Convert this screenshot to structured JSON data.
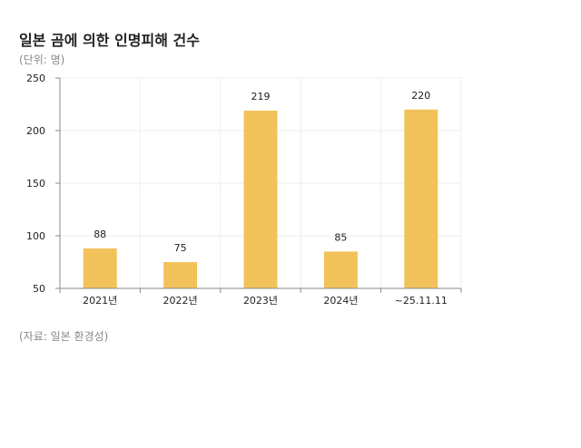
{
  "title": "일본 곰에 의한 인명피해 건수",
  "unit_note": "(단위: 명)",
  "source_note": "(자료: 일본 환경성)",
  "colors": {
    "bar": "#F2C25A",
    "grid": "#eeeeee",
    "axis": "#888888"
  },
  "chart_data": {
    "type": "bar",
    "title": "일본 곰에 의한 인명피해 건수",
    "xlabel": "",
    "ylabel": "",
    "categories": [
      "2021년",
      "2022년",
      "2023년",
      "2024년",
      "~25.11.11"
    ],
    "values": [
      88,
      75,
      219,
      85,
      220
    ],
    "ylim": [
      50,
      250
    ],
    "yticks": [
      50,
      100,
      150,
      200,
      250
    ],
    "grid": true,
    "data_labels": true
  }
}
